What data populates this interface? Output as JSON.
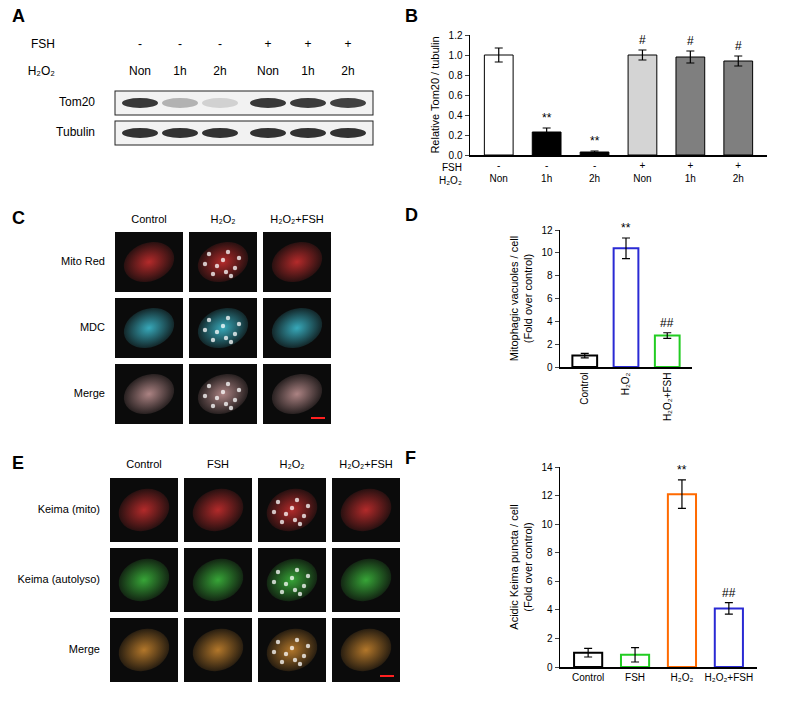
{
  "blot": {
    "panel": "A",
    "conditions": [
      {
        "label": "FSH",
        "values": [
          "-",
          "-",
          "-",
          "+",
          "+",
          "+"
        ]
      },
      {
        "label": "H₂O₂",
        "values": [
          "Non",
          "1h",
          "2h",
          "Non",
          "1h",
          "2h"
        ]
      }
    ],
    "bands": [
      "Tom20",
      "Tubulin"
    ]
  },
  "micrographs": [
    {
      "panel": "C",
      "columns": [
        "Control",
        "H₂O₂",
        "H₂O₂+FSH"
      ],
      "rows": [
        "Mito Red",
        "MDC",
        "Merge"
      ]
    },
    {
      "panel": "E",
      "columns": [
        "Control",
        "FSH",
        "H₂O₂",
        "H₂O₂+FSH"
      ],
      "rows": [
        "Keima (mito)",
        "Keima (autolyso)",
        "Merge"
      ]
    }
  ],
  "chart_data": [
    {
      "panel": "B",
      "type": "bar",
      "x_rows": [
        {
          "label": "FSH",
          "values": [
            "-",
            "-",
            "-",
            "+",
            "+",
            "+"
          ]
        },
        {
          "label": "H₂O₂",
          "values": [
            "Non",
            "1h",
            "2h",
            "Non",
            "1h",
            "2h"
          ]
        }
      ],
      "values": [
        1.0,
        0.23,
        0.03,
        1.0,
        0.98,
        0.94
      ],
      "errors": [
        0.07,
        0.04,
        0.01,
        0.05,
        0.06,
        0.05
      ],
      "colors": [
        "#ffffff",
        "#000000",
        "#000000",
        "#d4d4d4",
        "#7f7f7f",
        "#7f7f7f"
      ],
      "marker": "filled",
      "significance": [
        null,
        "**",
        "**",
        "#",
        "#",
        "#"
      ],
      "y_label": [
        "Relative Tom20 / tubulin"
      ],
      "ylim": [
        0,
        1.2
      ],
      "yticks": [
        {
          "value": 0,
          "label": "0.0"
        },
        {
          "value": 0.2,
          "label": "0.2"
        },
        {
          "value": 0.4,
          "label": "0.4"
        },
        {
          "value": 0.6,
          "label": "0.6"
        },
        {
          "value": 0.8,
          "label": "0.8"
        },
        {
          "value": 1.0,
          "label": "1.0"
        },
        {
          "value": 1.2,
          "label": "1.2"
        }
      ],
      "grid": false
    },
    {
      "panel": "D",
      "type": "bar",
      "categories": [
        "Control",
        "H₂O₂",
        "H₂O₂+FSH"
      ],
      "values": [
        1.0,
        10.4,
        2.75
      ],
      "errors": [
        0.2,
        0.9,
        0.25
      ],
      "colors": [
        "#000000",
        "#2a2ad4",
        "#22cc22"
      ],
      "marker": "hollow",
      "significance": [
        null,
        "**",
        "##"
      ],
      "y_label": [
        "Mitophagic vacuoles / cell",
        "(Fold over control)"
      ],
      "ylim": [
        0,
        12
      ],
      "yticks": [
        0,
        2,
        4,
        6,
        8,
        10,
        12
      ],
      "grid": false
    },
    {
      "panel": "F",
      "type": "bar",
      "categories": [
        "Control",
        "FSH",
        "H₂O₂",
        "H₂O₂+FSH"
      ],
      "values": [
        1.0,
        0.85,
        12.1,
        4.1
      ],
      "errors": [
        0.3,
        0.5,
        1.0,
        0.4
      ],
      "colors": [
        "#000000",
        "#22cc22",
        "#ff6a00",
        "#2a2ad4"
      ],
      "marker": "hollow",
      "significance": [
        null,
        null,
        "**",
        "##"
      ],
      "y_label": [
        "Acidic Keima puncta / cell",
        "(Fold over control)"
      ],
      "ylim": [
        0,
        14
      ],
      "yticks": [
        0,
        2,
        4,
        6,
        8,
        10,
        12,
        14
      ],
      "grid": false
    }
  ]
}
